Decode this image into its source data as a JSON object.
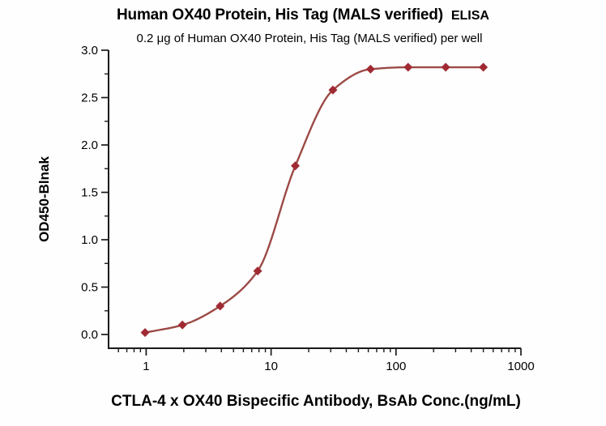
{
  "header": {
    "title_main": "Human OX40 Protein, His Tag (MALS verified)",
    "title_suffix": "ELISA",
    "subtitle": "0.2 μg of Human OX40 Protein, His Tag (MALS verified) per well"
  },
  "axes": {
    "x_label": "CTLA-4 x OX40 Bispecific Antibody, BsAb Conc.(ng/mL)",
    "y_label": "OD450-Blnak"
  },
  "chart_data": {
    "type": "line",
    "title": "Human OX40 Protein, His Tag (MALS verified)  ELISA",
    "subtitle": "0.2 μg of Human OX40 Protein, His Tag (MALS verified) per well",
    "xlabel": "CTLA-4 x OX40 Bispecific Antibody, BsAb Conc.(ng/mL)",
    "ylabel": "OD450-Blnak",
    "x_scale": "log10",
    "x_range": [
      0.5,
      1000
    ],
    "y_range": [
      0,
      3.0
    ],
    "grid": false,
    "legend": "none",
    "x_major_ticks": [
      1,
      10,
      100,
      1000
    ],
    "x_tick_labels": [
      "1",
      "10",
      "100",
      "1000"
    ],
    "x_minor_ticks": [
      0.6,
      0.7,
      0.8,
      0.9,
      2,
      3,
      4,
      5,
      6,
      7,
      8,
      9,
      20,
      30,
      40,
      50,
      60,
      70,
      80,
      90,
      200,
      300,
      400,
      500,
      600,
      700,
      800,
      900
    ],
    "y_major_ticks": [
      0.0,
      0.5,
      1.0,
      1.5,
      2.0,
      2.5,
      3.0
    ],
    "y_tick_labels": [
      "0.0",
      "0.5",
      "1.0",
      "1.5",
      "2.0",
      "2.5",
      "3.0"
    ],
    "y_minor_ticks": [
      0.25,
      0.75,
      1.25,
      1.75,
      2.25,
      2.75
    ],
    "series": [
      {
        "name": "Human OX40 Protein, His Tag (MALS verified)",
        "marker": "diamond",
        "x": [
          0.98,
          1.95,
          3.91,
          7.81,
          15.63,
          31.25,
          62.5,
          125,
          250,
          500
        ],
        "y": [
          0.02,
          0.1,
          0.3,
          0.67,
          1.78,
          2.58,
          2.8,
          2.82,
          2.82,
          2.82
        ]
      }
    ],
    "colors": {
      "line": "#9c4a46",
      "marker": "#a02a33",
      "axis": "#1a1a1a",
      "text": "#000000"
    }
  }
}
